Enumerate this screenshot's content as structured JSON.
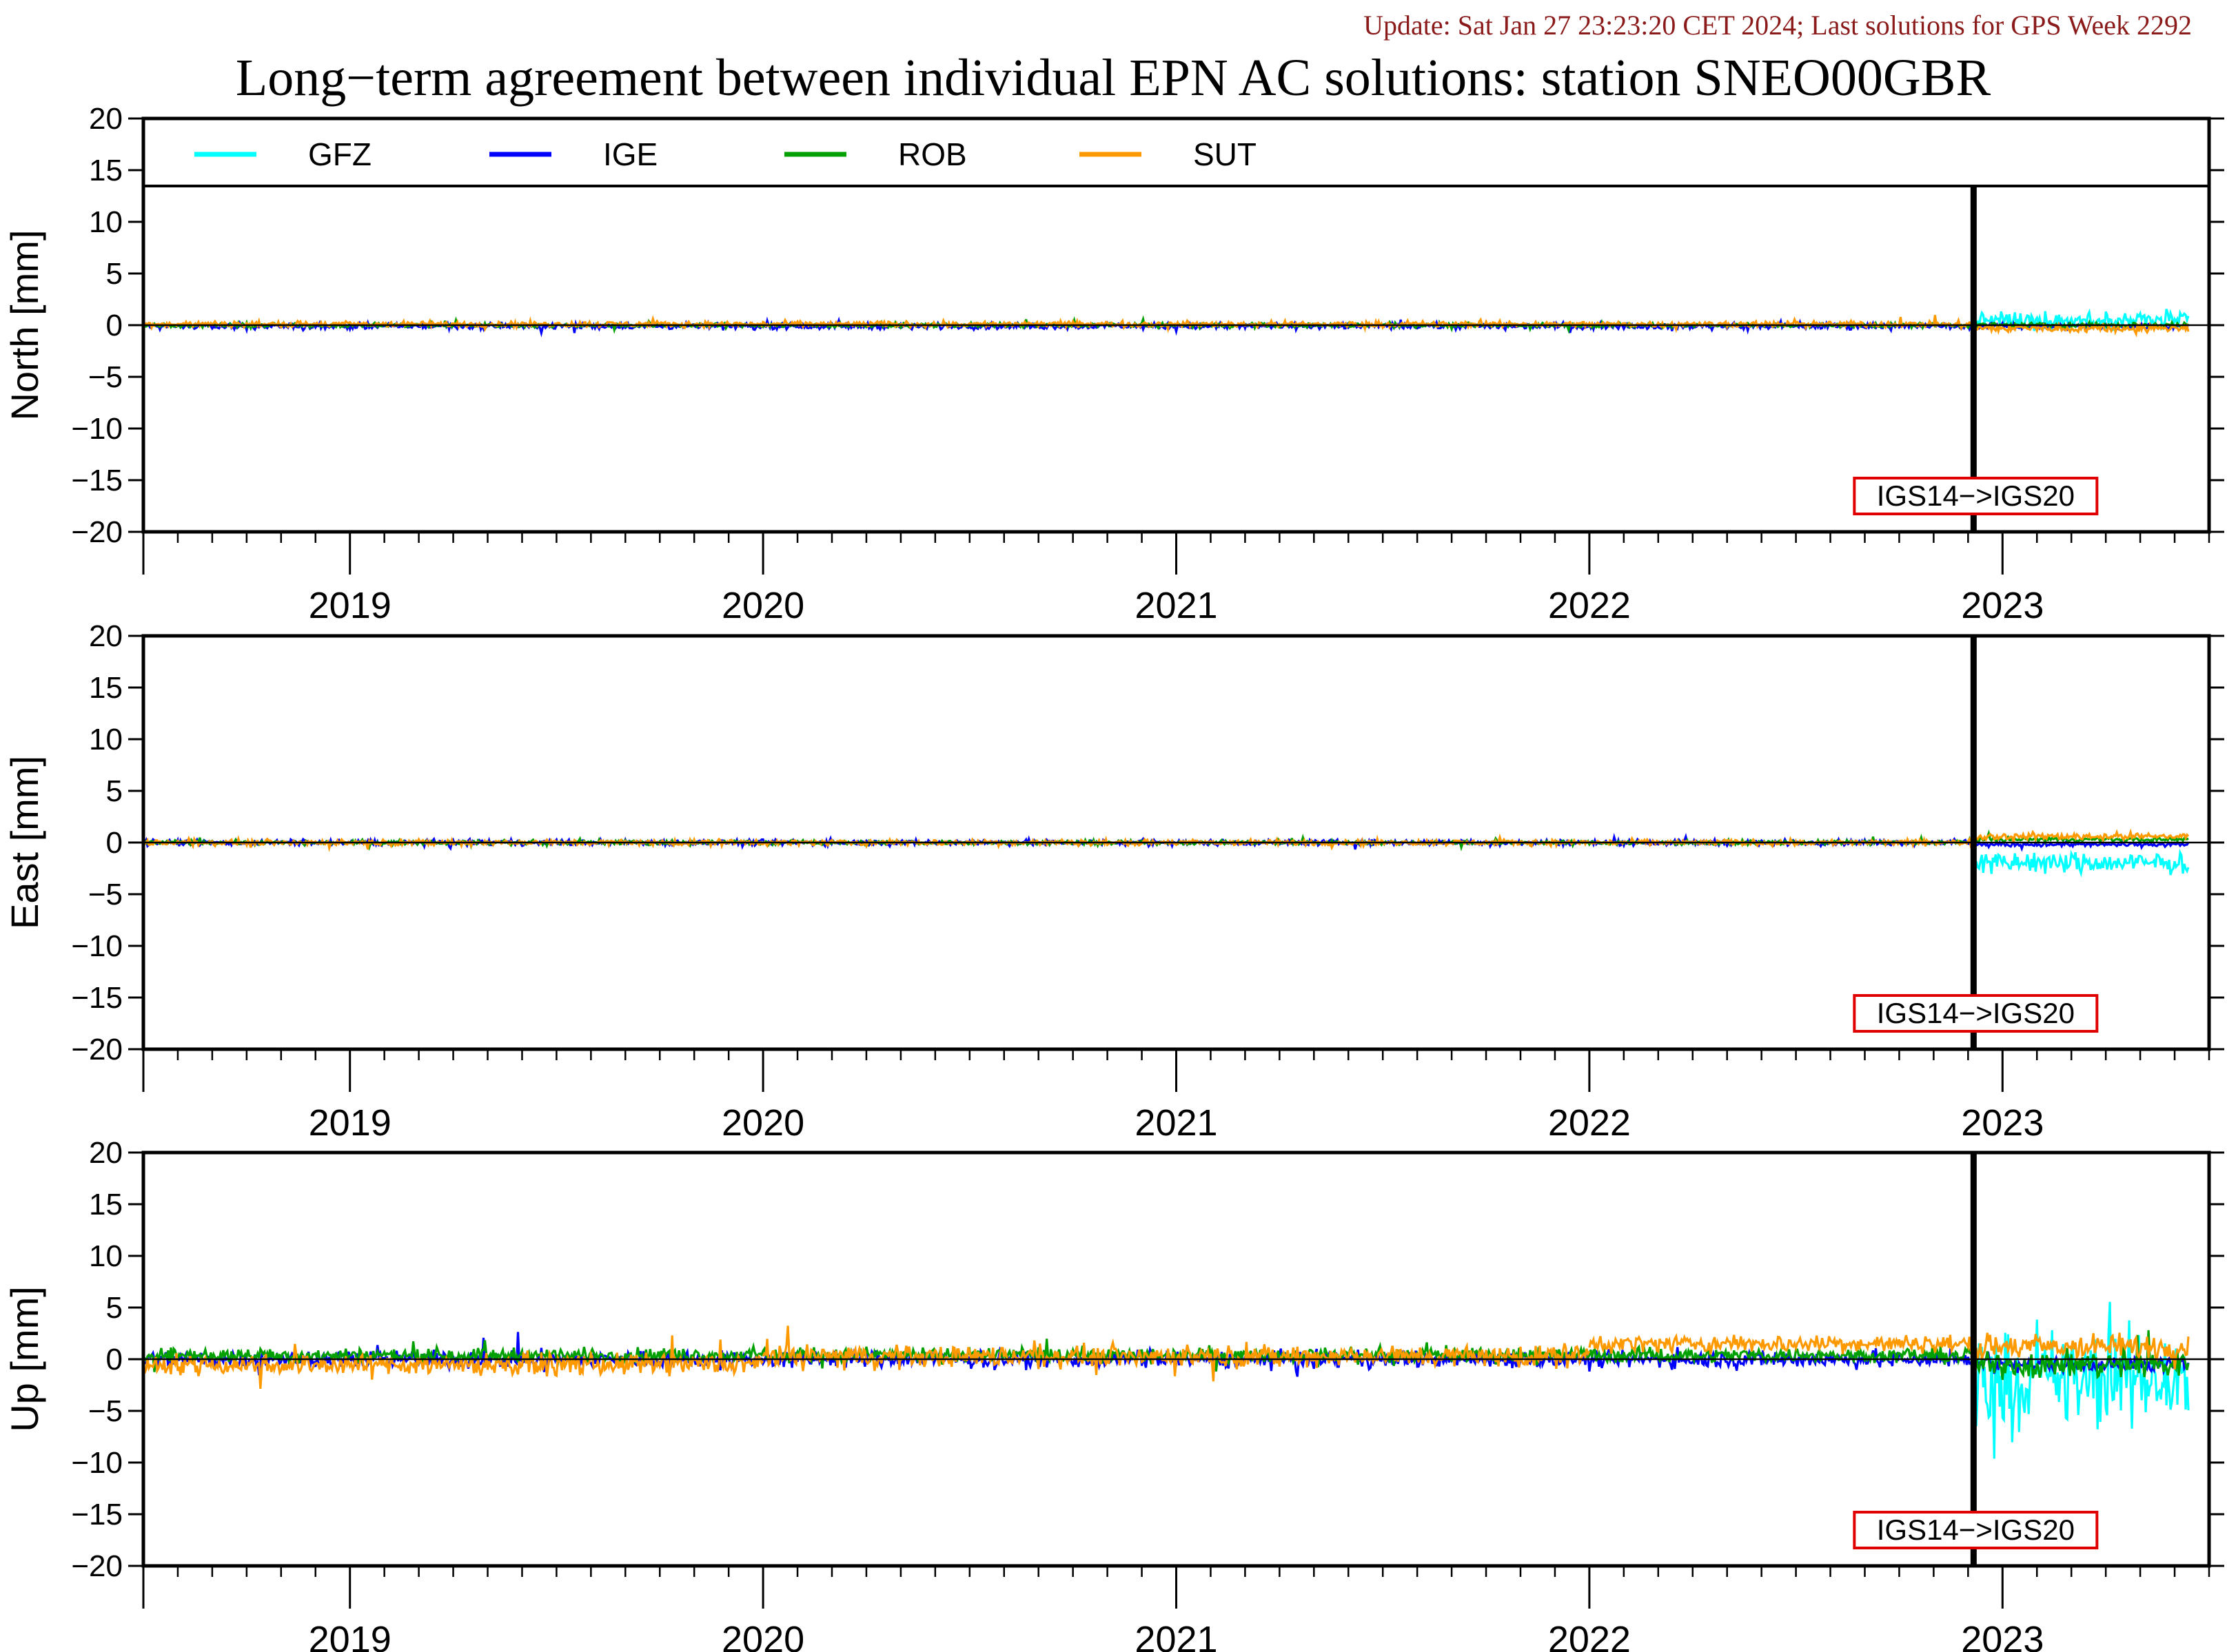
{
  "update_text": "Update: Sat Jan 27 23:23:20 CET 2024; Last solutions for GPS Week 2292",
  "colors": {
    "update": "#8b1a1a",
    "GFZ": "#00ffff",
    "IGE": "#0000ff",
    "ROB": "#00a000",
    "SUT": "#ff9900",
    "annotation_box": "#e00000"
  },
  "chart_data": {
    "type": "line",
    "title": "Long−term agreement between individual EPN AC solutions: station SNEO00GBR",
    "legend": {
      "placement": "top-left",
      "entries": [
        "GFZ",
        "IGE",
        "ROB",
        "SUT"
      ]
    },
    "x_range": [
      2018.5,
      2023.5
    ],
    "x_tick_labels": [
      "2019",
      "2020",
      "2021",
      "2022",
      "2023"
    ],
    "y_ticks": [
      "20",
      "15",
      "10",
      "5",
      "0",
      "−5",
      "−10",
      "−15",
      "−20"
    ],
    "grid": false,
    "reference_change": {
      "label": "IGS14−>IGS20",
      "x": 2022.93
    },
    "panels": [
      {
        "ylabel": "North [mm]",
        "ylim": [
          -20,
          20
        ],
        "series": [
          {
            "name": "GFZ",
            "segments": [
              {
                "x_range": [
                  2022.93,
                  2023.45
                ],
                "mean": 0.5,
                "amplitude": 1.2
              }
            ]
          },
          {
            "name": "IGE",
            "segments": [
              {
                "x_range": [
                  2018.5,
                  2022.93
                ],
                "mean": -0.1,
                "amplitude": 0.4
              },
              {
                "x_range": [
                  2022.93,
                  2023.45
                ],
                "mean": -0.1,
                "amplitude": 0.4
              }
            ]
          },
          {
            "name": "ROB",
            "segments": [
              {
                "x_range": [
                  2018.5,
                  2022.93
                ],
                "mean": 0.0,
                "amplitude": 0.3
              },
              {
                "x_range": [
                  2022.93,
                  2023.45
                ],
                "mean": 0.0,
                "amplitude": 0.4
              }
            ]
          },
          {
            "name": "SUT",
            "segments": [
              {
                "x_range": [
                  2018.5,
                  2022.93
                ],
                "mean": 0.1,
                "amplitude": 0.4
              },
              {
                "x_range": [
                  2022.93,
                  2023.45
                ],
                "mean": -0.3,
                "amplitude": 0.6
              }
            ]
          }
        ]
      },
      {
        "ylabel": "East [mm]",
        "ylim": [
          -20,
          20
        ],
        "series": [
          {
            "name": "GFZ",
            "segments": [
              {
                "x_range": [
                  2022.93,
                  2023.45
                ],
                "mean": -2.0,
                "amplitude": 1.5
              }
            ]
          },
          {
            "name": "IGE",
            "segments": [
              {
                "x_range": [
                  2018.5,
                  2022.93
                ],
                "mean": 0.0,
                "amplitude": 0.4
              },
              {
                "x_range": [
                  2022.93,
                  2023.45
                ],
                "mean": -0.2,
                "amplitude": 0.3
              }
            ]
          },
          {
            "name": "ROB",
            "segments": [
              {
                "x_range": [
                  2018.5,
                  2022.93
                ],
                "mean": 0.0,
                "amplitude": 0.3
              },
              {
                "x_range": [
                  2022.93,
                  2023.45
                ],
                "mean": 0.3,
                "amplitude": 0.3
              }
            ]
          },
          {
            "name": "SUT",
            "segments": [
              {
                "x_range": [
                  2018.5,
                  2022.93
                ],
                "mean": 0.0,
                "amplitude": 0.4
              },
              {
                "x_range": [
                  2022.93,
                  2023.45
                ],
                "mean": 0.6,
                "amplitude": 0.5
              }
            ]
          }
        ]
      },
      {
        "ylabel": "Up [mm]",
        "ylim": [
          -20,
          20
        ],
        "series": [
          {
            "name": "GFZ",
            "segments": [
              {
                "x_range": [
                  2022.93,
                  2023.45
                ],
                "mean": -2.0,
                "amplitude": 7.0
              }
            ]
          },
          {
            "name": "IGE",
            "segments": [
              {
                "x_range": [
                  2018.5,
                  2022.93
                ],
                "mean": 0.0,
                "amplitude": 1.2
              },
              {
                "x_range": [
                  2022.93,
                  2023.45
                ],
                "mean": -0.5,
                "amplitude": 1.0
              }
            ]
          },
          {
            "name": "ROB",
            "segments": [
              {
                "x_range": [
                  2018.5,
                  2022.93
                ],
                "mean": 0.4,
                "amplitude": 1.0
              },
              {
                "x_range": [
                  2022.93,
                  2023.45
                ],
                "mean": -0.5,
                "amplitude": 2.0
              }
            ]
          },
          {
            "name": "SUT",
            "segments": [
              {
                "x_range": [
                  2018.5,
                  2020.0
                ],
                "mean": -0.5,
                "amplitude": 1.5
              },
              {
                "x_range": [
                  2020.0,
                  2022.0
                ],
                "mean": 0.3,
                "amplitude": 1.5
              },
              {
                "x_range": [
                  2022.0,
                  2022.93
                ],
                "mean": 1.5,
                "amplitude": 1.2
              },
              {
                "x_range": [
                  2022.93,
                  2023.45
                ],
                "mean": 1.2,
                "amplitude": 1.8
              }
            ]
          }
        ]
      }
    ]
  }
}
